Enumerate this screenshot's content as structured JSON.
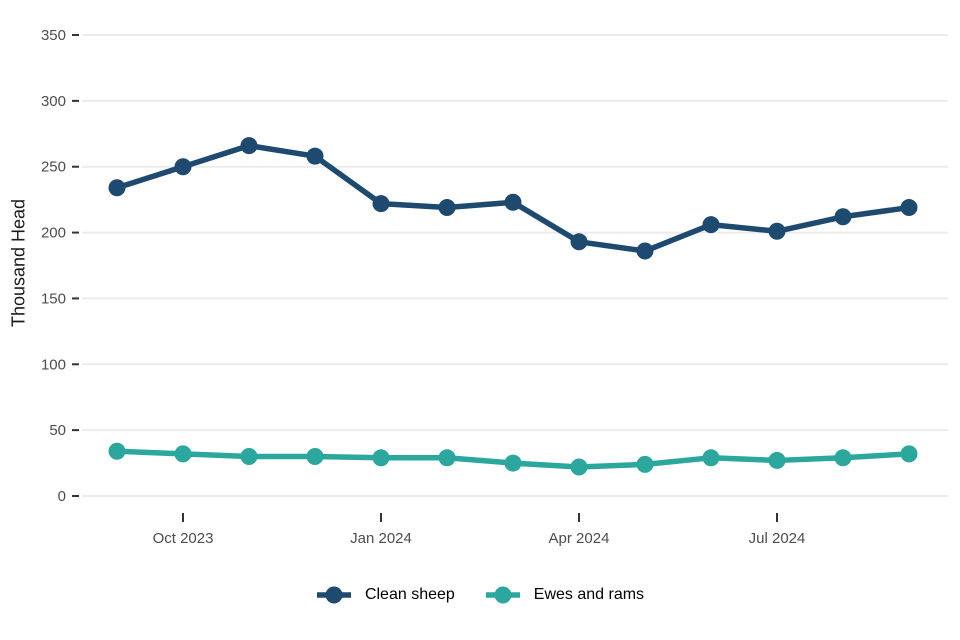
{
  "chart": {
    "legend": [
      {
        "label": "Clean sheep",
        "color": "#1d4a6e"
      },
      {
        "label": "Ewes and rams",
        "color": "#2ba79d"
      }
    ]
  },
  "chart_data": {
    "type": "line",
    "title": "",
    "xlabel": "",
    "ylabel": "Thousand Head",
    "x": [
      "Sep 2023",
      "Oct 2023",
      "Nov 2023",
      "Dec 2023",
      "Jan 2024",
      "Feb 2024",
      "Mar 2024",
      "Apr 2024",
      "May 2024",
      "Jun 2024",
      "Jul 2024",
      "Aug 2024",
      "Sep 2024"
    ],
    "series": [
      {
        "name": "Clean sheep",
        "color": "#1d4a6e",
        "values": [
          234,
          250,
          266,
          258,
          222,
          219,
          223,
          193,
          186,
          206,
          201,
          212,
          219
        ]
      },
      {
        "name": "Ewes and rams",
        "color": "#2ba79d",
        "values": [
          34,
          32,
          30,
          30,
          29,
          29,
          25,
          22,
          24,
          29,
          27,
          29,
          32
        ]
      }
    ],
    "ylim": [
      0,
      350
    ],
    "yticks": [
      0,
      50,
      100,
      150,
      200,
      250,
      300,
      350
    ],
    "xticks": [
      {
        "index": 1,
        "label": "Oct 2023"
      },
      {
        "index": 4,
        "label": "Jan 2024"
      },
      {
        "index": 7,
        "label": "Apr 2024"
      },
      {
        "index": 10,
        "label": "Jul 2024"
      }
    ],
    "grid": "horizontal",
    "legend_position": "bottom"
  },
  "style": {
    "grid_color": "#ebebeb",
    "tick_color": "#333333",
    "axis_text_color": "#4d4d4d",
    "axis_title_color": "#1a1a1a",
    "background": "#ffffff"
  }
}
